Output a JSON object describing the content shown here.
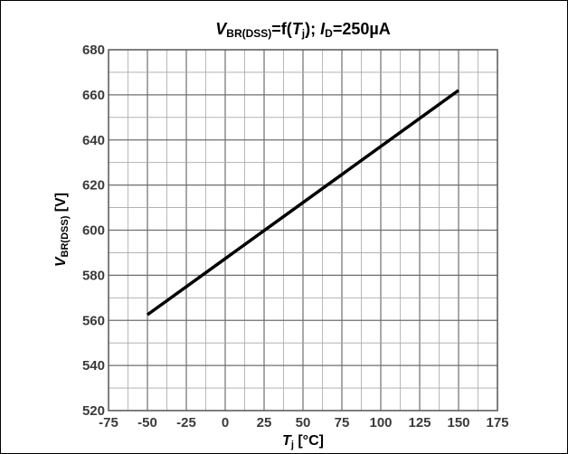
{
  "chart_data": {
    "type": "line",
    "title": {
      "v": "V",
      "v_sub": "BR(DSS)",
      "mid": "=f(",
      "t": "T",
      "t_sub": "j",
      "mid2": "); ",
      "i": "I",
      "i_sub": "D",
      "end": "=250µA"
    },
    "xlabel": {
      "main": "T",
      "sub": "j",
      "unit": " [°C]"
    },
    "ylabel": {
      "main": "V",
      "sub": "BR(DSS)",
      "unit": " [V]"
    },
    "xlim": [
      -75,
      175
    ],
    "ylim": [
      520,
      680
    ],
    "xticks": [
      "-75",
      "-50",
      "-25",
      "0",
      "25",
      "50",
      "75",
      "100",
      "125",
      "150",
      "175"
    ],
    "yticks": [
      "520",
      "540",
      "560",
      "580",
      "600",
      "620",
      "640",
      "660",
      "680"
    ],
    "grid": true,
    "x": [
      -50,
      150
    ],
    "y": [
      562.5,
      662
    ]
  }
}
